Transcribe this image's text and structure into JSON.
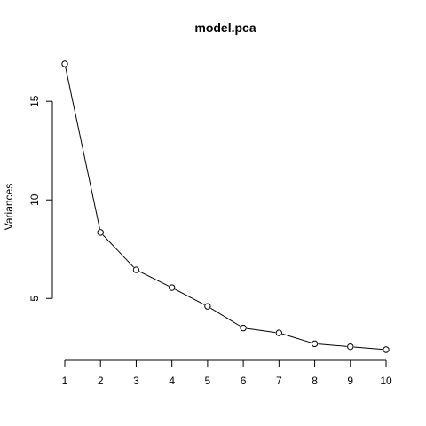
{
  "chart_data": {
    "type": "line",
    "title": "model.pca",
    "xlabel": "",
    "ylabel": "Variances",
    "x": [
      1,
      2,
      3,
      4,
      5,
      6,
      7,
      8,
      9,
      10
    ],
    "values": [
      16.9,
      8.35,
      6.45,
      5.55,
      4.6,
      3.5,
      3.25,
      2.7,
      2.55,
      2.4
    ],
    "x_ticks": [
      "1",
      "2",
      "3",
      "4",
      "5",
      "6",
      "7",
      "8",
      "9",
      "10"
    ],
    "y_ticks": [
      "5",
      "10",
      "15"
    ],
    "ylim": [
      2.4,
      16.9
    ],
    "grid": false,
    "markers": "open-circle"
  }
}
